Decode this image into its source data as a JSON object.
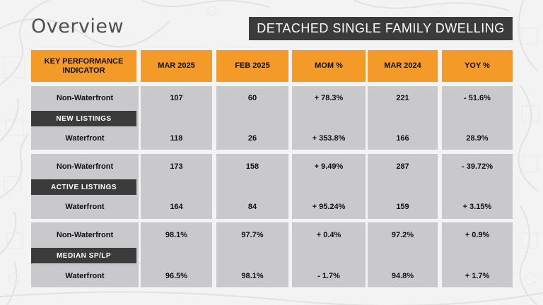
{
  "title": "Overview",
  "badge": "DETACHED SINGLE FAMILY DWELLING",
  "headers": {
    "kpi": "KEY PERFORMANCE INDICATOR",
    "cols": [
      "MAR 2025",
      "FEB 2025",
      "MOM %",
      "MAR 2024",
      "YOY %"
    ]
  },
  "groups": [
    {
      "label": "NEW LISTINGS",
      "rows": [
        {
          "label": "Non-Waterfront",
          "values": [
            "107",
            "60",
            "+ 78.3%",
            "221",
            "- 51.6%"
          ]
        },
        {
          "label": "Waterfront",
          "values": [
            "118",
            "26",
            "+ 353.8%",
            "166",
            "28.9%"
          ]
        }
      ]
    },
    {
      "label": "ACTIVE LISTINGS",
      "rows": [
        {
          "label": "Non-Waterfront",
          "values": [
            "173",
            "158",
            "+ 9.49%",
            "287",
            "- 39.72%"
          ]
        },
        {
          "label": "Waterfront",
          "values": [
            "164",
            "84",
            "+ 95.24%",
            "159",
            "+ 3.15%"
          ]
        }
      ]
    },
    {
      "label": "MEDIAN SP/LP",
      "rows": [
        {
          "label": "Non-Waterfront",
          "values": [
            "98.1%",
            "97.7%",
            "+ 0.4%",
            "97.2%",
            "+ 0.9%"
          ]
        },
        {
          "label": "Waterfront",
          "values": [
            "96.5%",
            "98.1%",
            "- 1.7%",
            "94.8%",
            "+ 1.7%"
          ]
        }
      ]
    }
  ],
  "colors": {
    "header": "#f49a28",
    "cell": "#c9c9cc",
    "dark": "#3b3b3b"
  }
}
